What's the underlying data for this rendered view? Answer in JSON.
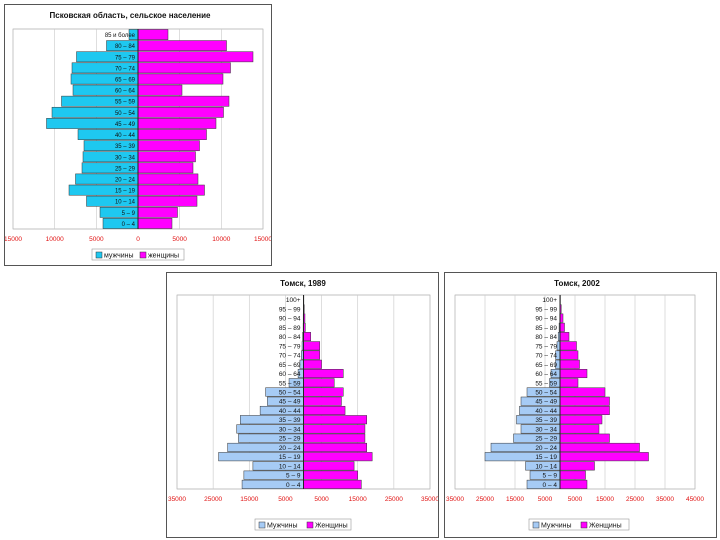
{
  "chart_data": [
    {
      "type": "bar",
      "subtype": "population-pyramid",
      "title": "Псковская область, сельское население",
      "categories": [
        "0 – 4",
        "5 – 9",
        "10 – 14",
        "15 – 19",
        "20 – 24",
        "25 – 29",
        "30 – 34",
        "35 – 39",
        "40 – 44",
        "45 – 49",
        "50 – 54",
        "55 – 59",
        "60 – 64",
        "65 – 69",
        "70 – 74",
        "75 – 79",
        "80 – 84",
        "85 и более"
      ],
      "series": [
        {
          "name": "мужчины",
          "color": "#1ec8f0",
          "values": [
            -7000,
            -7600,
            -10300,
            -13800,
            -12500,
            -11200,
            -11000,
            -10800,
            -12000,
            -18300,
            -17200,
            -15300,
            -13000,
            -13400,
            -13200,
            -12300,
            -6300,
            -1800
          ]
        },
        {
          "name": "женщины",
          "color": "#ff00ff",
          "values": [
            6800,
            7900,
            11800,
            13300,
            12000,
            11000,
            11500,
            12300,
            13700,
            15600,
            17100,
            18200,
            8800,
            17000,
            18500,
            23000,
            17700,
            6000
          ]
        }
      ],
      "x_ticks": [
        "15000",
        "10000",
        "5000",
        "0",
        "5000",
        "10000",
        "15000"
      ],
      "xlim": [
        -25000,
        25000
      ],
      "legend_position": "bottom"
    },
    {
      "type": "bar",
      "subtype": "population-pyramid",
      "title": "Томск, 1989",
      "categories": [
        "0 – 4",
        "5 – 9",
        "10 – 14",
        "15 – 19",
        "20 – 24",
        "25 – 29",
        "30 – 34",
        "35 – 39",
        "40 – 44",
        "45 – 49",
        "50 – 54",
        "55 – 59",
        "60 – 64",
        "65 – 69",
        "70 – 74",
        "75 – 79",
        "80 – 84",
        "85 – 89",
        "90 – 94",
        "95 – 99",
        "100+"
      ],
      "series": [
        {
          "name": "Мужчины",
          "color": "#a6cbf5",
          "values": [
            -17000,
            -16500,
            -14000,
            -23500,
            -21000,
            -18000,
            -18500,
            -17500,
            -12000,
            -10000,
            -10500,
            -4000,
            -1500,
            -1000,
            -600,
            -400,
            -250,
            -100,
            -80,
            -50,
            -30
          ]
        },
        {
          "name": "Женщины",
          "color": "#ff00ff",
          "values": [
            16000,
            15000,
            14000,
            19000,
            17500,
            17000,
            17000,
            17500,
            11500,
            10500,
            11000,
            8500,
            11000,
            5000,
            4500,
            4500,
            2000,
            500,
            400,
            200,
            100
          ]
        }
      ],
      "x_ticks": [
        "35000",
        "25000",
        "15000",
        "5000",
        "5000",
        "15000",
        "25000",
        "35000"
      ],
      "xlim": [
        -35000,
        35000
      ],
      "legend_position": "bottom"
    },
    {
      "type": "bar",
      "subtype": "population-pyramid",
      "title": "Томск, 2002",
      "categories": [
        "0 – 4",
        "5 – 9",
        "10 – 14",
        "15 – 19",
        "20 – 24",
        "25 – 29",
        "30 – 34",
        "35 – 39",
        "40 – 44",
        "45 – 49",
        "50 – 54",
        "55 – 59",
        "60 – 64",
        "65 – 69",
        "70 – 74",
        "75 – 79",
        "80 – 84",
        "85 – 89",
        "90 – 94",
        "95 – 99",
        "100+"
      ],
      "series": [
        {
          "name": "Мужчины",
          "color": "#a6cbf5",
          "values": [
            -11000,
            -10000,
            -11500,
            -25000,
            -23000,
            -15500,
            -13000,
            -14500,
            -13500,
            -13000,
            -11000,
            -3500,
            -3000,
            -1500,
            -1500,
            -1000,
            -600,
            -300,
            -100,
            -50,
            -30
          ]
        },
        {
          "name": "Женщины",
          "color": "#ff00ff",
          "values": [
            9000,
            8500,
            11500,
            29500,
            26500,
            16500,
            13000,
            14000,
            16500,
            16500,
            15000,
            6000,
            9000,
            6500,
            6000,
            5500,
            3000,
            1500,
            1000,
            400,
            150
          ]
        }
      ],
      "x_ticks": [
        "35000",
        "25000",
        "15000",
        "5000",
        "5000",
        "15000",
        "25000",
        "35000",
        "45000"
      ],
      "xlim": [
        -35000,
        45000
      ],
      "legend_position": "bottom"
    }
  ]
}
